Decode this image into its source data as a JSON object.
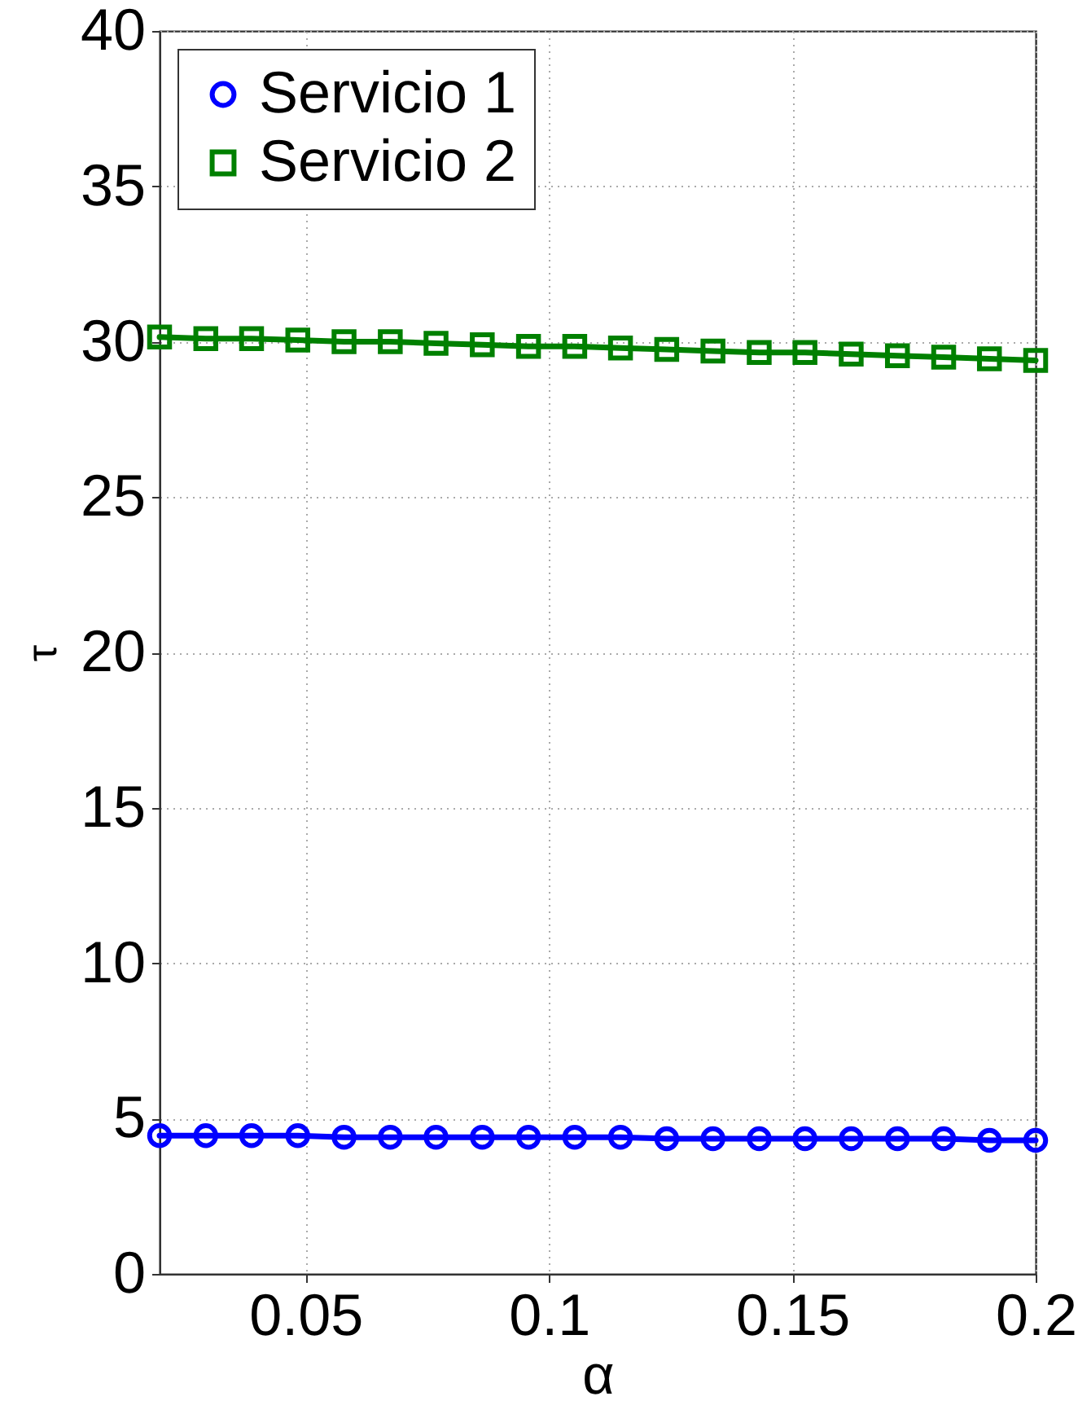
{
  "chart_data": {
    "type": "line",
    "xlabel": "α",
    "ylabel": "τ",
    "x": [
      0.02,
      0.0295,
      0.0389,
      0.0484,
      0.0579,
      0.0674,
      0.0768,
      0.0863,
      0.0958,
      0.1053,
      0.1147,
      0.1242,
      0.1337,
      0.1432,
      0.1526,
      0.1621,
      0.1716,
      0.1811,
      0.1905,
      0.2
    ],
    "series": [
      {
        "name": "Servicio 1",
        "color": "#0000ff",
        "marker": "circle",
        "values": [
          4.45,
          4.45,
          4.45,
          4.45,
          4.4,
          4.4,
          4.4,
          4.4,
          4.4,
          4.4,
          4.4,
          4.35,
          4.35,
          4.35,
          4.35,
          4.35,
          4.35,
          4.35,
          4.3,
          4.3
        ]
      },
      {
        "name": "Servicio 2",
        "color": "#008000",
        "marker": "square",
        "values": [
          30.15,
          30.1,
          30.1,
          30.05,
          30.0,
          30.0,
          29.95,
          29.9,
          29.85,
          29.85,
          29.8,
          29.75,
          29.7,
          29.65,
          29.65,
          29.6,
          29.55,
          29.5,
          29.45,
          29.4
        ]
      }
    ],
    "xlim": [
      0.02,
      0.2
    ],
    "ylim": [
      0,
      40
    ],
    "xticks": [
      0.05,
      0.1,
      0.15,
      0.2
    ],
    "yticks": [
      0,
      5,
      10,
      15,
      20,
      25,
      30,
      35,
      40
    ],
    "grid": true,
    "legend": "top left",
    "line_style": "solid"
  }
}
